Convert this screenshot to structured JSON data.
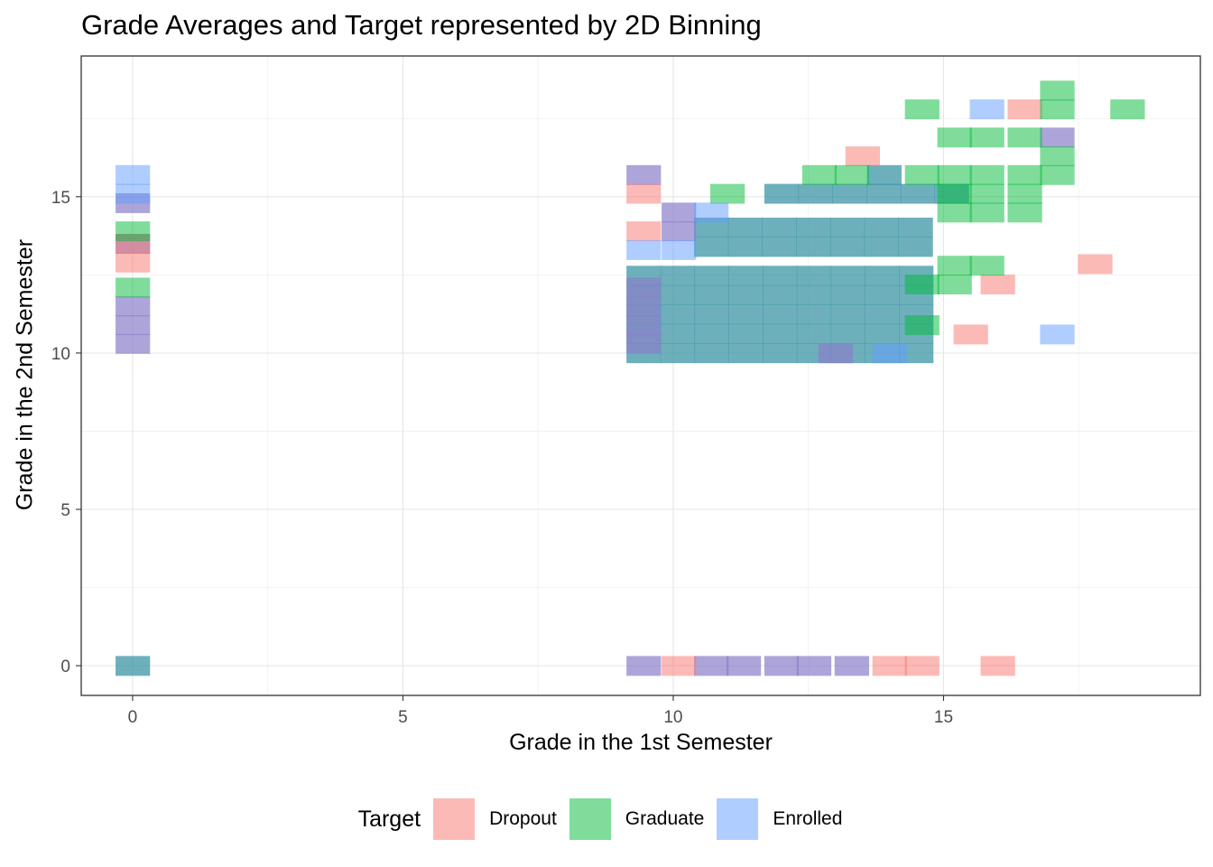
{
  "chart_data": {
    "type": "heatmap",
    "title": "Grade Averages and Target represented by 2D Binning",
    "xlabel": "Grade in the 1st Semester",
    "ylabel": "Grade in the 2nd Semester",
    "xlim": [
      -0.95,
      19.75
    ],
    "ylim": [
      -0.95,
      19.5
    ],
    "x_ticks": [
      0,
      5,
      10,
      15
    ],
    "y_ticks": [
      0,
      5,
      10,
      15
    ],
    "bin_width_x": 0.63,
    "bin_width_y": 0.62,
    "grid": true,
    "legend": {
      "title": "Target",
      "position": "bottom"
    },
    "series": [
      {
        "name": "Dropout",
        "color": "#F8766D",
        "bins": [
          [
            0,
            12.9
          ],
          [
            0,
            13.5
          ],
          [
            9.45,
            13.9
          ],
          [
            9.45,
            15.1
          ],
          [
            13.5,
            16.3
          ],
          [
            15.5,
            10.6
          ],
          [
            16,
            12.2
          ],
          [
            16.5,
            17.8
          ],
          [
            17.8,
            12.85
          ],
          [
            10.1,
            0
          ],
          [
            14,
            0
          ],
          [
            14.6,
            0
          ],
          [
            16,
            0
          ]
        ]
      },
      {
        "name": "Graduate",
        "color": "#00BA38",
        "bins": [
          [
            0,
            12.1
          ],
          [
            0,
            13.9
          ],
          [
            11,
            15.1
          ],
          [
            12.7,
            15.7
          ],
          [
            13.3,
            15.7
          ],
          [
            14.6,
            15.7
          ],
          [
            14.6,
            17.8
          ],
          [
            14.6,
            12.2
          ],
          [
            14.6,
            10.9
          ],
          [
            15.2,
            16.9
          ],
          [
            15.8,
            16.9
          ],
          [
            16.5,
            16.9
          ],
          [
            15.2,
            15.7
          ],
          [
            15.8,
            15.7
          ],
          [
            16.5,
            15.7
          ],
          [
            17.1,
            15.7
          ],
          [
            15.2,
            15.1
          ],
          [
            15.8,
            15.1
          ],
          [
            16.5,
            15.1
          ],
          [
            15.2,
            14.5
          ],
          [
            15.8,
            14.5
          ],
          [
            16.5,
            14.5
          ],
          [
            15.2,
            12.8
          ],
          [
            15.8,
            12.8
          ],
          [
            15.2,
            12.2
          ],
          [
            17.1,
            18.4
          ],
          [
            17.1,
            17.8
          ],
          [
            17.1,
            16.3
          ],
          [
            18.4,
            17.8
          ]
        ]
      },
      {
        "name": "Enrolled",
        "color": "#619CFF",
        "bins": [
          [
            0,
            15.7
          ],
          [
            0,
            15.1
          ],
          [
            9.45,
            13.3
          ],
          [
            10.1,
            13.3
          ],
          [
            10.7,
            14.5
          ],
          [
            15.8,
            17.8
          ],
          [
            17.1,
            10.6
          ],
          [
            14,
            10
          ]
        ]
      }
    ]
  }
}
